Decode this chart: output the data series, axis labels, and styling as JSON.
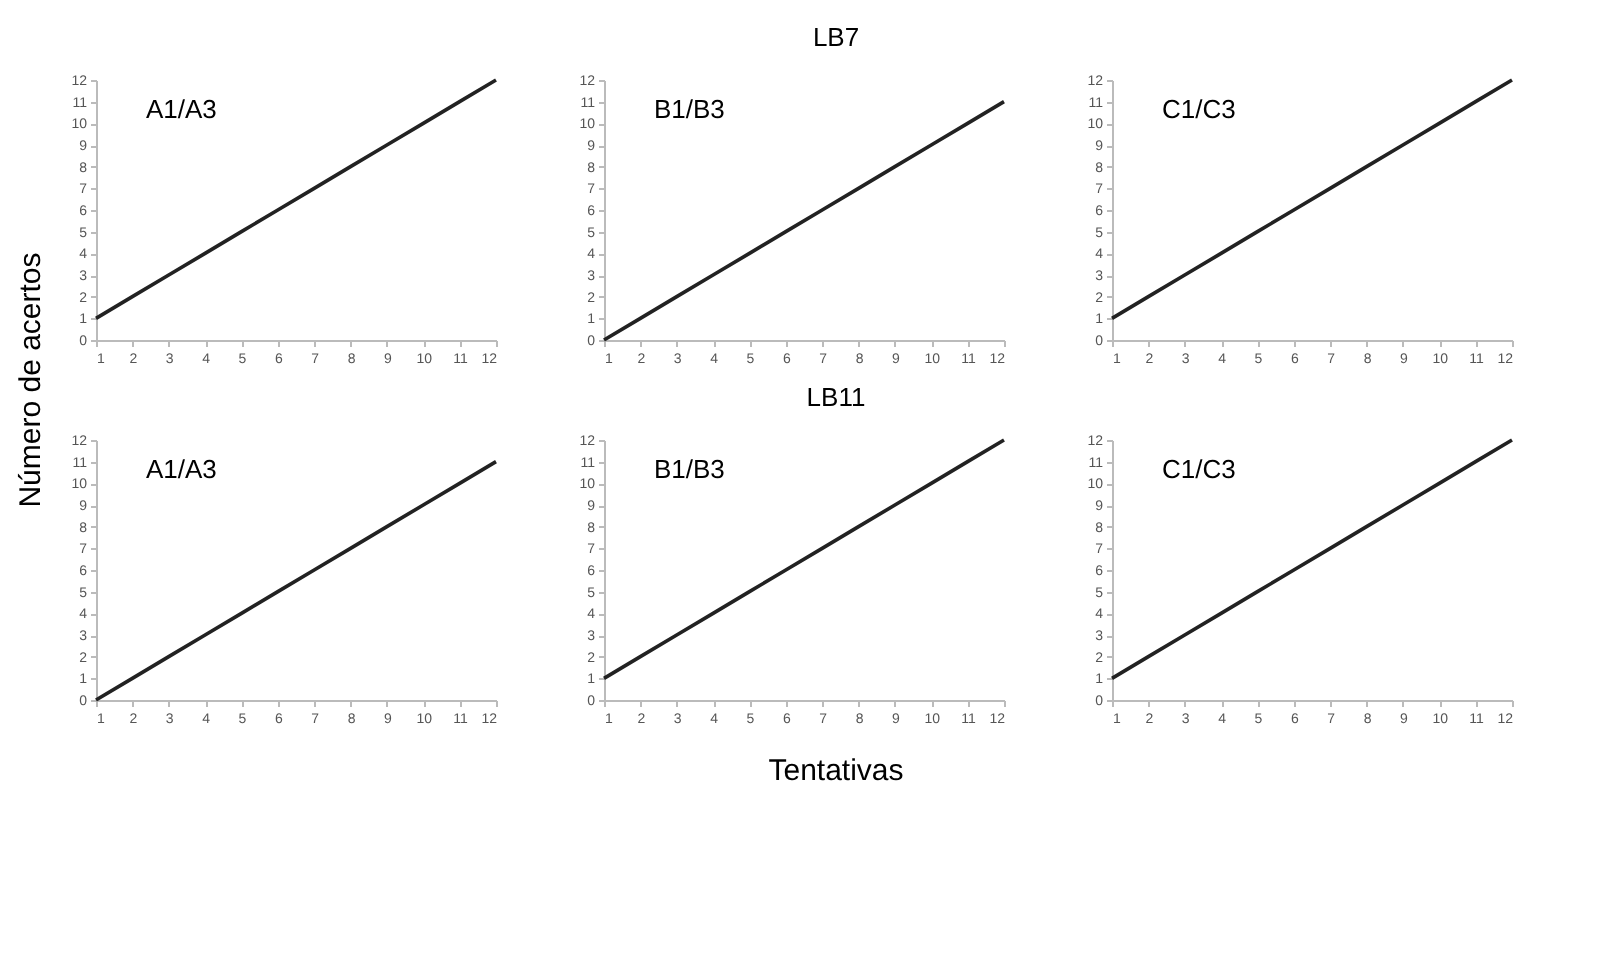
{
  "chart_data": [
    {
      "type": "line",
      "ylabel": "Número de acertos",
      "annotations": [
        "A1/A3"
      ],
      "x": [
        1,
        2,
        3,
        4,
        5,
        6,
        7,
        8,
        9,
        10,
        11,
        12
      ],
      "values": [
        1,
        2,
        3,
        4,
        5,
        6,
        7,
        8,
        9,
        10,
        11,
        12
      ],
      "color": "#222222",
      "xlim": [
        1,
        12
      ],
      "ylim": [
        0,
        12
      ],
      "xticks": [
        1,
        2,
        3,
        4,
        5,
        6,
        7,
        8,
        9,
        10,
        11,
        12
      ],
      "yticks": [
        0,
        1,
        2,
        3,
        4,
        5,
        6,
        7,
        8,
        9,
        10,
        11,
        12
      ]
    },
    {
      "type": "line",
      "title": "LB7",
      "annotations": [
        "B1/B3"
      ],
      "x": [
        1,
        2,
        3,
        4,
        5,
        6,
        7,
        8,
        9,
        10,
        11,
        12
      ],
      "values": [
        0,
        1,
        2,
        3,
        4,
        5,
        6,
        7,
        8,
        9,
        10,
        11
      ],
      "color": "#222222",
      "xlim": [
        1,
        12
      ],
      "ylim": [
        0,
        12
      ],
      "xticks": [
        1,
        2,
        3,
        4,
        5,
        6,
        7,
        8,
        9,
        10,
        11,
        12
      ],
      "yticks": [
        0,
        1,
        2,
        3,
        4,
        5,
        6,
        7,
        8,
        9,
        10,
        11,
        12
      ]
    },
    {
      "type": "line",
      "annotations": [
        "C1/C3"
      ],
      "x": [
        1,
        2,
        3,
        4,
        5,
        6,
        7,
        8,
        9,
        10,
        11,
        12
      ],
      "values": [
        1,
        2,
        3,
        4,
        5,
        6,
        7,
        8,
        9,
        10,
        11,
        12
      ],
      "color": "#222222",
      "xlim": [
        1,
        12
      ],
      "ylim": [
        0,
        12
      ],
      "xticks": [
        1,
        2,
        3,
        4,
        5,
        6,
        7,
        8,
        9,
        10,
        11,
        12
      ],
      "yticks": [
        0,
        1,
        2,
        3,
        4,
        5,
        6,
        7,
        8,
        9,
        10,
        11,
        12
      ]
    },
    {
      "type": "line",
      "annotations": [
        "A1/A3"
      ],
      "x": [
        1,
        2,
        3,
        4,
        5,
        6,
        7,
        8,
        9,
        10,
        11,
        12
      ],
      "values": [
        0,
        1,
        2,
        3,
        4,
        5,
        6,
        7,
        8,
        9,
        10,
        11
      ],
      "color": "#222222",
      "xlim": [
        1,
        12
      ],
      "ylim": [
        0,
        12
      ],
      "xticks": [
        1,
        2,
        3,
        4,
        5,
        6,
        7,
        8,
        9,
        10,
        11,
        12
      ],
      "yticks": [
        0,
        1,
        2,
        3,
        4,
        5,
        6,
        7,
        8,
        9,
        10,
        11,
        12
      ]
    },
    {
      "type": "line",
      "title": "LB11",
      "xlabel": "Tentativas",
      "annotations": [
        "B1/B3"
      ],
      "x": [
        1,
        2,
        3,
        4,
        5,
        6,
        7,
        8,
        9,
        10,
        11,
        12
      ],
      "values": [
        1,
        2,
        3,
        4,
        5,
        6,
        7,
        8,
        9,
        10,
        11,
        12
      ],
      "color": "#222222",
      "xlim": [
        1,
        12
      ],
      "ylim": [
        0,
        12
      ],
      "xticks": [
        1,
        2,
        3,
        4,
        5,
        6,
        7,
        8,
        9,
        10,
        11,
        12
      ],
      "yticks": [
        0,
        1,
        2,
        3,
        4,
        5,
        6,
        7,
        8,
        9,
        10,
        11,
        12
      ]
    },
    {
      "type": "line",
      "annotations": [
        "C1/C3"
      ],
      "x": [
        1,
        2,
        3,
        4,
        5,
        6,
        7,
        8,
        9,
        10,
        11,
        12
      ],
      "values": [
        1,
        2,
        3,
        4,
        5,
        6,
        7,
        8,
        9,
        10,
        11,
        12
      ],
      "color": "#222222",
      "xlim": [
        1,
        12
      ],
      "ylim": [
        0,
        12
      ],
      "xticks": [
        1,
        2,
        3,
        4,
        5,
        6,
        7,
        8,
        9,
        10,
        11,
        12
      ],
      "yticks": [
        0,
        1,
        2,
        3,
        4,
        5,
        6,
        7,
        8,
        9,
        10,
        11,
        12
      ]
    }
  ]
}
